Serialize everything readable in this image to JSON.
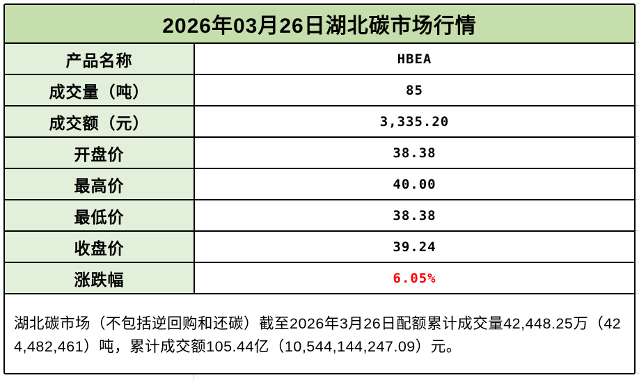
{
  "title": "2026年03月26日湖北碳市场行情",
  "table": {
    "rows": [
      {
        "label": "产品名称",
        "value": "HBEA",
        "highlight": false
      },
      {
        "label": "成交量（吨）",
        "value": "85",
        "highlight": false
      },
      {
        "label": "成交额（元）",
        "value": "3,335.20",
        "highlight": false
      },
      {
        "label": "开盘价",
        "value": "38.38",
        "highlight": false
      },
      {
        "label": "最高价",
        "value": "40.00",
        "highlight": false
      },
      {
        "label": "最低价",
        "value": "38.38",
        "highlight": false
      },
      {
        "label": "收盘价",
        "value": "39.24",
        "highlight": false
      },
      {
        "label": "涨跌幅",
        "value": "6.05%",
        "highlight": true
      }
    ]
  },
  "footer": {
    "note": "湖北碳市场（不包括逆回购和还碳）截至2026年3月26日配额累计成交量42,448.25万（424,482,461）吨，累计成交额105.44亿（10,544,144,247.09）元。"
  },
  "colors": {
    "title_bg": "#c6deab",
    "label_bg": "#e2efda",
    "value_bg": "#ffffff",
    "border": "#000000",
    "highlight_text": "#fe0000",
    "gridline": "#d9d9d9"
  },
  "chart_data": {
    "type": "table",
    "title": "2026年03月26日湖北碳市场行情",
    "rows": [
      [
        "产品名称",
        "HBEA"
      ],
      [
        "成交量（吨）",
        "85"
      ],
      [
        "成交额（元）",
        "3,335.20"
      ],
      [
        "开盘价",
        "38.38"
      ],
      [
        "最高价",
        "40.00"
      ],
      [
        "最低价",
        "38.38"
      ],
      [
        "收盘价",
        "39.24"
      ],
      [
        "涨跌幅",
        "6.05%"
      ]
    ],
    "values": {
      "product": "HBEA",
      "volume_tons": 85,
      "turnover_cny": 3335.2,
      "open": 38.38,
      "high": 40.0,
      "low": 38.38,
      "close": 39.24,
      "change_pct": 6.05
    },
    "note": "湖北碳市场（不包括逆回购和还碳）截至2026年3月26日配额累计成交量42,448.25万（424,482,461）吨，累计成交额105.44亿（10,544,144,247.09）元。"
  }
}
